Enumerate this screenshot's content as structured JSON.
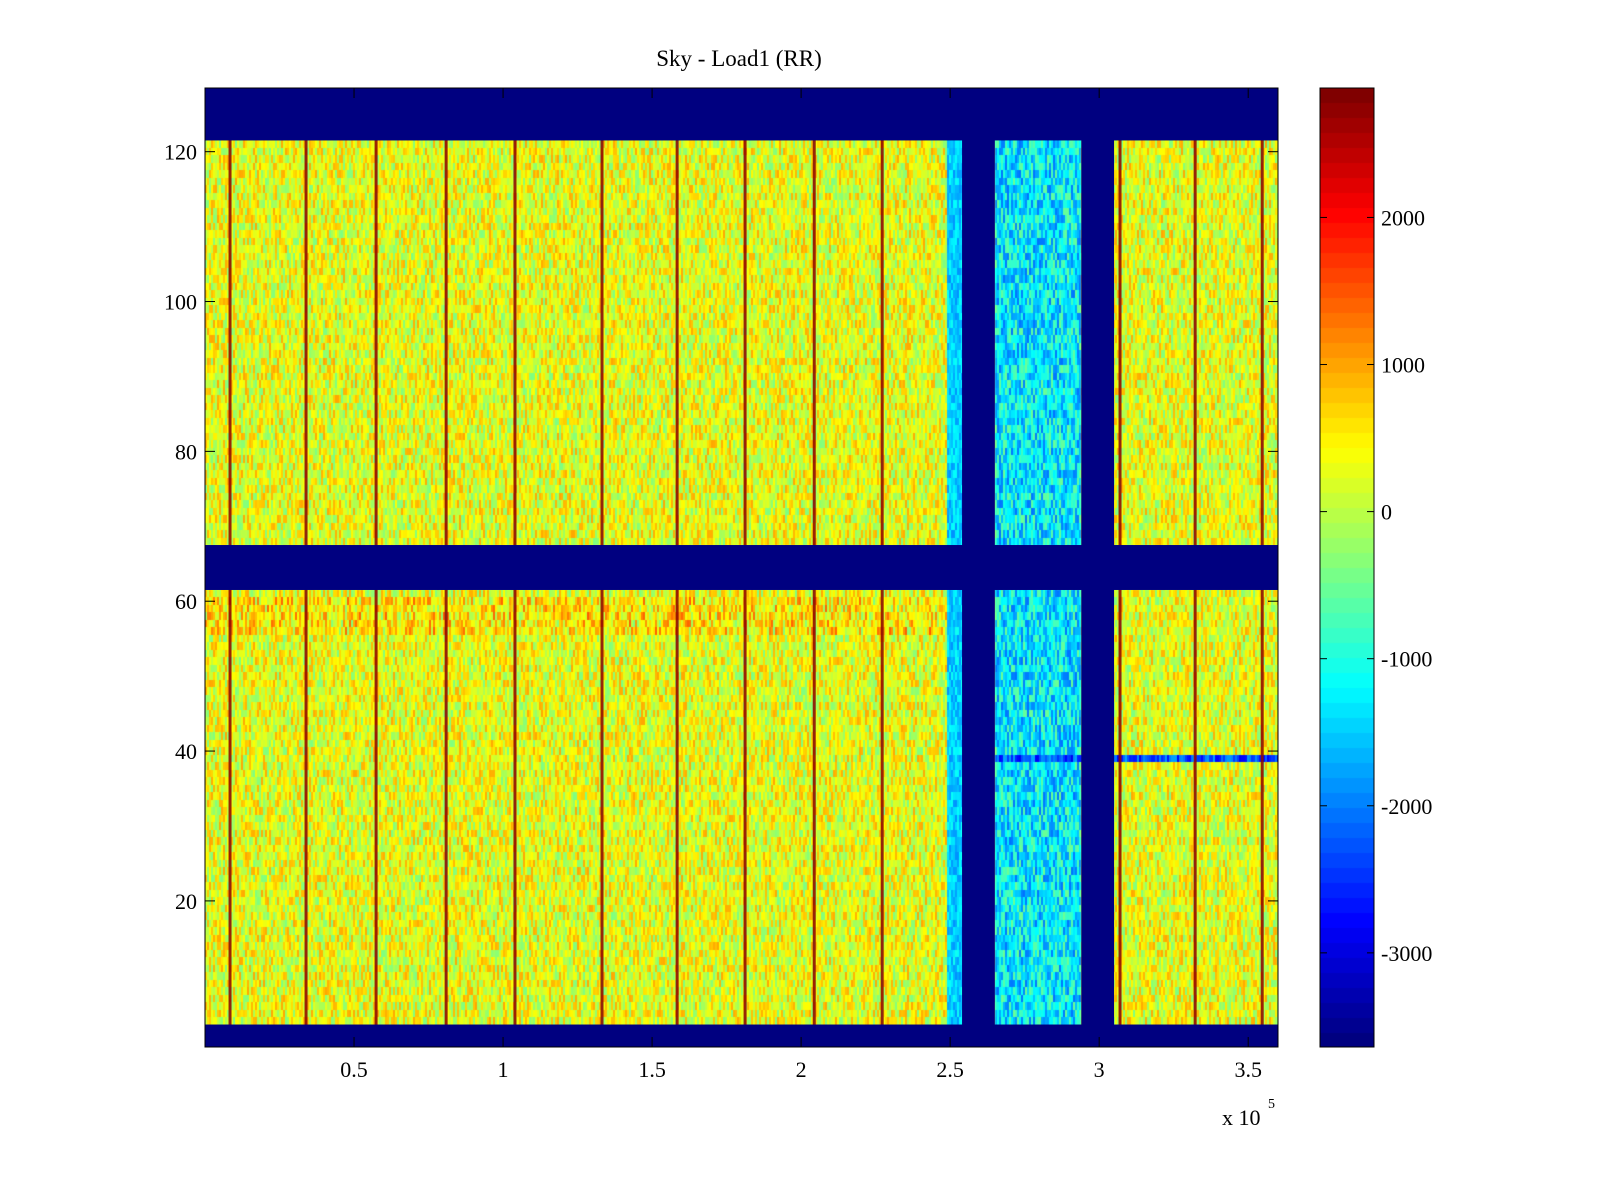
{
  "chart_data": {
    "type": "heatmap",
    "title": "Sky - Load1 (RR)",
    "xlabel": "",
    "ylabel": "",
    "x_exponent_label": "x 10",
    "x_exponent": "5",
    "xlim": [
      0,
      3.6
    ],
    "ylim": [
      0.5,
      128.5
    ],
    "xticks": [
      0.5,
      1,
      1.5,
      2,
      2.5,
      3,
      3.5
    ],
    "xtick_labels": [
      "0.5",
      "1",
      "1.5",
      "2",
      "2.5",
      "3",
      "3.5"
    ],
    "yticks": [
      20,
      40,
      60,
      80,
      100,
      120
    ],
    "ytick_labels": [
      "20",
      "40",
      "60",
      "80",
      "100",
      "120"
    ],
    "colormap": "jet",
    "clim": [
      -3640,
      2880
    ],
    "colorbar_ticks": [
      -3000,
      -2000,
      -1000,
      0,
      1000,
      2000
    ],
    "colorbar_tick_labels": [
      "-3000",
      "-2000",
      "-1000",
      "0",
      "1000",
      "2000"
    ],
    "colorbar_location": "right",
    "typical_value": 300,
    "noise_amplitude": 700,
    "masked_value": -3640,
    "masked_row_ranges": [
      [
        1,
        3
      ],
      [
        62,
        67
      ],
      [
        122,
        128
      ]
    ],
    "masked_column_ranges": [
      [
        2.54,
        2.65
      ],
      [
        2.94,
        3.05
      ]
    ],
    "low_region": {
      "x_range": [
        2.65,
        2.94
      ],
      "value": -1300
    },
    "low_row": {
      "row": 39,
      "x_range": [
        2.65,
        3.6
      ],
      "value": -2600
    },
    "warm_rows": {
      "rows": [
        56,
        60
      ],
      "value": 900
    },
    "stripe_value": 2800,
    "stripe_positions": [
      0.084,
      0.339,
      0.574,
      0.809,
      1.04,
      1.332,
      1.584,
      1.812,
      2.044,
      2.272,
      3.07,
      3.322,
      3.547
    ]
  }
}
